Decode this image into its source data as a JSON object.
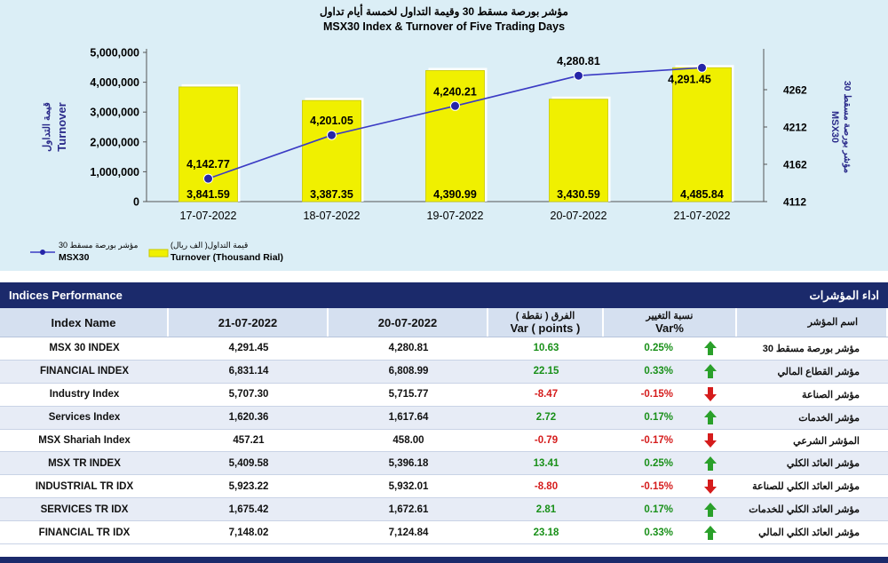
{
  "chart_data": {
    "type": "bar+line",
    "title_ar": "مؤشر بورصة مسقط 30 وقيمة التداول لخمسة أيام تداول",
    "title_en": "MSX30 Index & Turnover of Five Trading Days",
    "categories": [
      "17-07-2022",
      "18-07-2022",
      "19-07-2022",
      "20-07-2022",
      "21-07-2022"
    ],
    "series": [
      {
        "name": "Turnover (Thousand Rial)",
        "name_ar": "قيمة التداول( الف ريال)",
        "type": "bar",
        "axis": "left",
        "color": "#f0f000",
        "values": [
          3841.59,
          3387.35,
          4390.99,
          3430.59,
          4485.84
        ],
        "labels": [
          "3,841.59",
          "3,387.35",
          "4,390.99",
          "3,430.59",
          "4,485.84"
        ]
      },
      {
        "name": "MSX30",
        "name_ar": "مؤشر بورصة مسقط 30",
        "type": "line",
        "axis": "right",
        "color": "#3b3bc4",
        "values": [
          4142.77,
          4201.05,
          4240.21,
          4280.81,
          4291.45
        ],
        "labels": [
          "4,142.77",
          "4,201.05",
          "4,240.21",
          "4,280.81",
          "4,291.45"
        ]
      }
    ],
    "left_axis": {
      "label_ar": "قيمة التداول",
      "label_en": "Turnover",
      "ticks": [
        "0",
        "1,000,000",
        "2,000,000",
        "3,000,000",
        "4,000,000",
        "5,000,000"
      ],
      "ylim": [
        0,
        5000000
      ]
    },
    "right_axis": {
      "label_ar": "مؤشر بورصة مسقط 30",
      "label_en": "MSX30",
      "ticks": [
        "4112",
        "4162",
        "4212",
        "4262"
      ],
      "ylim": [
        4112,
        4312
      ]
    },
    "legend_position": "bottom-left"
  },
  "table": {
    "title_en": "Indices Performance",
    "title_ar": "اداء المؤشرات",
    "headers": {
      "name": "Index Name",
      "cur": "21-07-2022",
      "prev": "20-07-2022",
      "diff_ar": "الفرق ( نقطة )",
      "diff_en": "Var ( points )",
      "pct_ar": "نسبة التغيير",
      "pct_en": "Var%",
      "name_ar": "اسم المؤشر"
    },
    "rows": [
      {
        "name": "MSX 30 INDEX",
        "cur": "4,291.45",
        "prev": "4,280.81",
        "diff": "10.63",
        "pct": "0.25%",
        "dir": "up",
        "name_ar": "مؤشر بورصة مسقط 30"
      },
      {
        "name": "FINANCIAL INDEX",
        "cur": "6,831.14",
        "prev": "6,808.99",
        "diff": "22.15",
        "pct": "0.33%",
        "dir": "up",
        "name_ar": "مؤشر القطاع المالي"
      },
      {
        "name": "Industry Index",
        "cur": "5,707.30",
        "prev": "5,715.77",
        "diff": "-8.47",
        "pct": "-0.15%",
        "dir": "down",
        "name_ar": "مؤشر الصناعة"
      },
      {
        "name": "Services Index",
        "cur": "1,620.36",
        "prev": "1,617.64",
        "diff": "2.72",
        "pct": "0.17%",
        "dir": "up",
        "name_ar": "مؤشر الخدمات"
      },
      {
        "name": "MSX Shariah Index",
        "cur": "457.21",
        "prev": "458.00",
        "diff": "-0.79",
        "pct": "-0.17%",
        "dir": "down",
        "name_ar": "المؤشر الشرعي"
      },
      {
        "name": "MSX TR INDEX",
        "cur": "5,409.58",
        "prev": "5,396.18",
        "diff": "13.41",
        "pct": "0.25%",
        "dir": "up",
        "name_ar": "مؤشر العائد الكلي"
      },
      {
        "name": "INDUSTRIAL TR IDX",
        "cur": "5,923.22",
        "prev": "5,932.01",
        "diff": "-8.80",
        "pct": "-0.15%",
        "dir": "down",
        "name_ar": "مؤشر العائد الكلي للصناعة"
      },
      {
        "name": "SERVICES TR IDX",
        "cur": "1,675.42",
        "prev": "1,672.61",
        "diff": "2.81",
        "pct": "0.17%",
        "dir": "up",
        "name_ar": "مؤشر العائد الكلي للخدمات"
      },
      {
        "name": "FINANCIAL TR IDX",
        "cur": "7,148.02",
        "prev": "7,124.84",
        "diff": "23.18",
        "pct": "0.33%",
        "dir": "up",
        "name_ar": "مؤشر العائد الكلي المالي"
      }
    ],
    "colors": {
      "up": "#2aa02a",
      "down": "#d51c1c",
      "band": "#1b2a6b"
    }
  }
}
